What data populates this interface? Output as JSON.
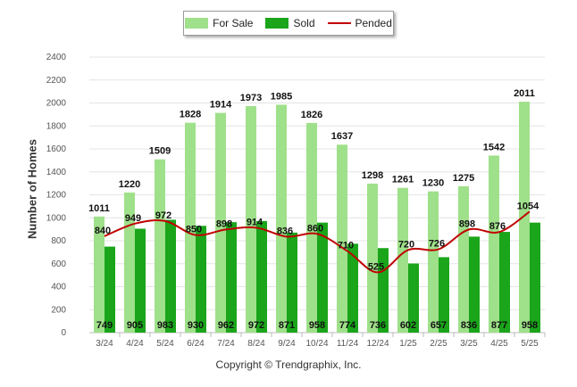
{
  "chart_data": {
    "type": "bar",
    "categories": [
      "3/24",
      "4/24",
      "5/24",
      "6/24",
      "7/24",
      "8/24",
      "9/24",
      "10/24",
      "11/24",
      "12/24",
      "1/25",
      "2/25",
      "3/25",
      "4/25",
      "5/25"
    ],
    "series": [
      {
        "name": "For Sale",
        "type": "bar",
        "color": "#9fe08a",
        "values": [
          1011,
          1220,
          1509,
          1828,
          1914,
          1973,
          1985,
          1826,
          1637,
          1298,
          1261,
          1230,
          1275,
          1542,
          2011
        ]
      },
      {
        "name": "Sold",
        "type": "bar",
        "color": "#1aa51a",
        "values": [
          749,
          905,
          983,
          930,
          962,
          972,
          871,
          958,
          774,
          736,
          602,
          657,
          836,
          877,
          958
        ]
      },
      {
        "name": "Pended",
        "type": "line",
        "color": "#c00000",
        "values": [
          840,
          949,
          972,
          850,
          898,
          914,
          836,
          860,
          710,
          525,
          720,
          726,
          898,
          876,
          1054
        ]
      }
    ],
    "title": "",
    "xlabel": "",
    "ylabel": "Number of Homes",
    "ylim": [
      0,
      2400
    ],
    "yticks": [
      0,
      200,
      400,
      600,
      800,
      1000,
      1200,
      1400,
      1600,
      1800,
      2000,
      2200,
      2400
    ],
    "grid": true,
    "legend": "top-center"
  },
  "legend": {
    "for_sale": "For Sale",
    "sold": "Sold",
    "pended": "Pended"
  },
  "footer": {
    "copyright": "Copyright © Trendgraphix, Inc."
  }
}
